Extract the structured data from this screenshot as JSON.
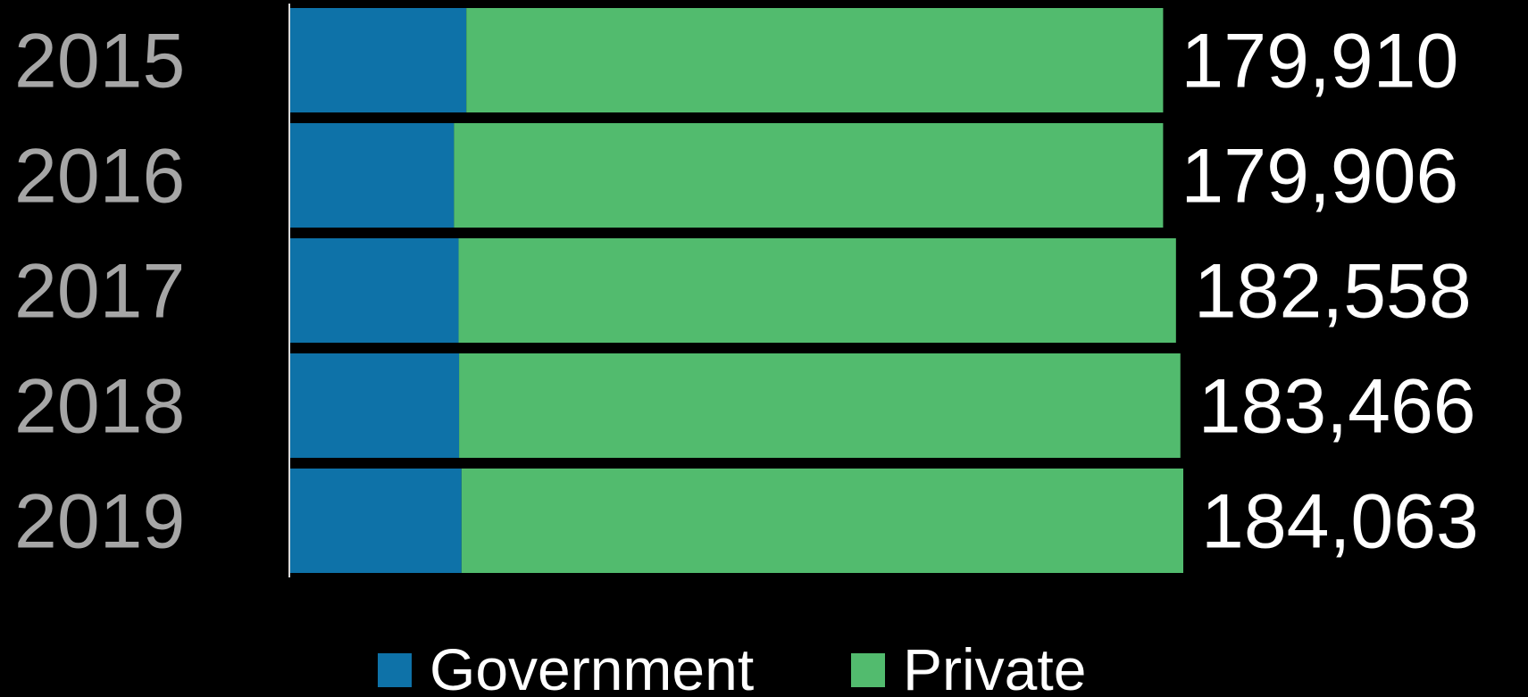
{
  "chart_data": {
    "type": "bar",
    "orientation": "horizontal",
    "stacked": true,
    "categories": [
      "2015",
      "2016",
      "2017",
      "2018",
      "2019"
    ],
    "series": [
      {
        "name": "Government",
        "color": "#0e72a8",
        "values": [
          36300,
          33750,
          34700,
          34800,
          35300
        ]
      },
      {
        "name": "Private",
        "color": "#52bb6e",
        "values": [
          143610,
          146156,
          147858,
          148666,
          148763
        ]
      }
    ],
    "totals": [
      "179,910",
      "179,906",
      "182,558",
      "183,466",
      "184,063"
    ],
    "title": "",
    "xlabel": "",
    "ylabel": "",
    "xlim": [
      0,
      184063
    ],
    "grid": false,
    "legend": "bottom-center"
  }
}
